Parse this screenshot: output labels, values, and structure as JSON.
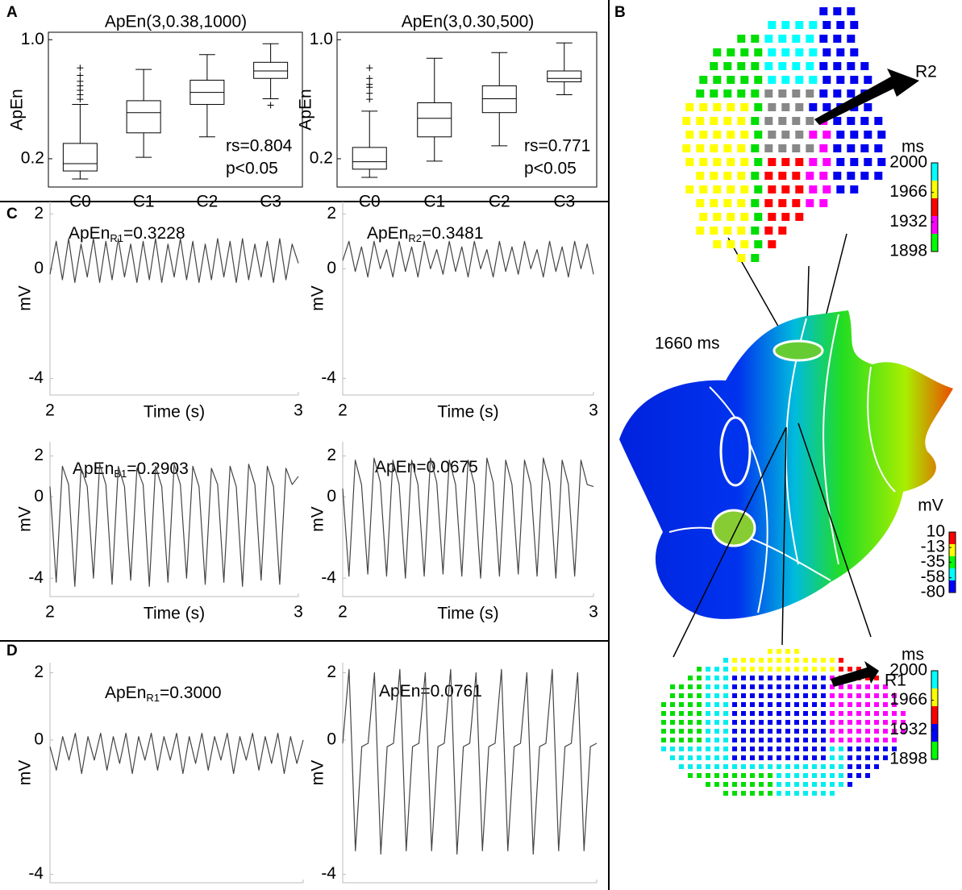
{
  "panel_labels": [
    "A",
    "B",
    "C",
    "D"
  ],
  "chart_data": [
    {
      "type": "box",
      "title": "ApEn(3,0.38,1000)",
      "ylabel": "ApEn",
      "categories": [
        "C0",
        "C1",
        "C2",
        "C3"
      ],
      "boxes": [
        {
          "whislo": 0.064,
          "q1": 0.118,
          "med": 0.167,
          "q3": 0.303,
          "whishi": 0.565,
          "fliers": [
            0.6,
            0.63,
            0.66,
            0.69,
            0.72,
            0.76,
            0.81
          ]
        },
        {
          "whislo": 0.21,
          "q1": 0.374,
          "med": 0.51,
          "q3": 0.59,
          "whishi": 0.8,
          "fliers": []
        },
        {
          "whislo": 0.347,
          "q1": 0.565,
          "med": 0.646,
          "q3": 0.728,
          "whishi": 0.9,
          "fliers": []
        },
        {
          "whislo": 0.603,
          "q1": 0.74,
          "med": 0.79,
          "q3": 0.848,
          "whishi": 0.973,
          "fliers": [
            0.56
          ]
        }
      ],
      "annotations": [
        "rs=0.804",
        "p<0.05"
      ],
      "color": "#000000",
      "ylim": [
        0.01,
        1.05
      ],
      "yticks": [
        0.2,
        {
          "value": 1,
          "label": "1.0"
        }
      ]
    },
    {
      "type": "box",
      "title": "ApEn(3,0.30,500)",
      "ylabel": "ApEn",
      "categories": [
        "C0",
        "C1",
        "C2",
        "C3"
      ],
      "boxes": [
        {
          "whislo": 0.075,
          "q1": 0.13,
          "med": 0.18,
          "q3": 0.276,
          "whishi": 0.52,
          "fliers": [
            0.6,
            0.64,
            0.68,
            0.7,
            0.74,
            0.81
          ]
        },
        {
          "whislo": 0.184,
          "q1": 0.347,
          "med": 0.472,
          "q3": 0.576,
          "whishi": 0.875,
          "fliers": []
        },
        {
          "whislo": 0.287,
          "q1": 0.51,
          "med": 0.603,
          "q3": 0.69,
          "whishi": 0.913,
          "fliers": []
        },
        {
          "whislo": 0.63,
          "q1": 0.717,
          "med": 0.74,
          "q3": 0.79,
          "whishi": 0.978,
          "fliers": []
        }
      ],
      "annotations": [
        "rs=0.771",
        "p<0.05"
      ],
      "color": "#000000",
      "ylim": [
        0.01,
        1.05
      ],
      "yticks": [
        0.2,
        {
          "value": 1,
          "label": "1.0"
        }
      ]
    },
    {
      "type": "line",
      "title": "ApEn",
      "title_subscript": "R1",
      "title_suffix": "=0.3228",
      "xlabel": "Time (s)",
      "ylabel": "mV",
      "color": "#444444",
      "x": [
        2,
        2.025,
        2.05,
        2.075,
        2.1,
        2.125,
        2.15,
        2.175,
        2.2,
        2.225,
        2.25,
        2.275,
        2.3,
        2.325,
        2.35,
        2.375,
        2.4,
        2.425,
        2.45,
        2.475,
        2.5,
        2.525,
        2.55,
        2.575,
        2.6,
        2.625,
        2.65,
        2.675,
        2.7,
        2.725,
        2.75,
        2.775,
        2.8,
        2.825,
        2.85,
        2.875,
        2.9,
        2.925,
        2.95,
        2.975,
        3
      ],
      "values": [
        -0.2,
        1.0,
        -0.4,
        1.1,
        -0.5,
        0.9,
        -0.3,
        1.1,
        -0.5,
        1.0,
        -0.4,
        1.1,
        -0.3,
        0.9,
        -0.5,
        1.0,
        -0.4,
        1.1,
        -0.5,
        0.9,
        -0.3,
        1.1,
        -0.4,
        1.0,
        -0.5,
        0.9,
        -0.4,
        1.1,
        -0.3,
        1.0,
        -0.5,
        1.1,
        -0.4,
        0.9,
        -0.3,
        1.0,
        -0.5,
        1.1,
        -0.4,
        0.9,
        0.2
      ],
      "xlim": [
        2,
        3
      ],
      "xticks": [
        2,
        3
      ],
      "ylim": [
        -4.6,
        2.45
      ],
      "yticks": [
        2,
        0,
        -4
      ]
    },
    {
      "type": "line",
      "title": "ApEn",
      "title_subscript": "R2",
      "title_suffix": "=0.3481",
      "xlabel": "Time (s)",
      "ylabel": "mV",
      "color": "#444444",
      "x": [
        2,
        2.025,
        2.05,
        2.075,
        2.1,
        2.125,
        2.15,
        2.175,
        2.2,
        2.225,
        2.25,
        2.275,
        2.3,
        2.325,
        2.35,
        2.375,
        2.4,
        2.425,
        2.45,
        2.475,
        2.5,
        2.525,
        2.55,
        2.575,
        2.6,
        2.625,
        2.65,
        2.675,
        2.7,
        2.725,
        2.75,
        2.775,
        2.8,
        2.825,
        2.85,
        2.875,
        2.9,
        2.925,
        2.95,
        2.975,
        3
      ],
      "values": [
        0.3,
        1.0,
        -0.1,
        0.8,
        -0.3,
        1.0,
        0.0,
        0.7,
        -0.3,
        1.0,
        -0.1,
        0.8,
        -0.3,
        1.0,
        0.0,
        0.7,
        -0.2,
        1.0,
        -0.1,
        0.8,
        -0.3,
        1.0,
        0.0,
        0.7,
        -0.3,
        1.0,
        -0.1,
        0.8,
        -0.2,
        1.0,
        0.0,
        0.7,
        -0.3,
        1.0,
        -0.1,
        0.8,
        -0.3,
        1.0,
        0.0,
        0.9,
        -0.2
      ],
      "xlim": [
        2,
        3
      ],
      "xticks": [
        2,
        3
      ],
      "ylim": [
        -4.6,
        2.45
      ],
      "yticks": [
        2,
        0,
        -4
      ]
    },
    {
      "type": "line",
      "title": "ApEn",
      "title_subscript": "B1",
      "title_suffix": "=0.2903",
      "xlabel": "Time (s)",
      "ylabel": "mV",
      "color": "#444444",
      "x": [
        2,
        2.025,
        2.05,
        2.075,
        2.1,
        2.125,
        2.15,
        2.175,
        2.2,
        2.225,
        2.25,
        2.275,
        2.3,
        2.325,
        2.35,
        2.375,
        2.4,
        2.425,
        2.45,
        2.475,
        2.5,
        2.525,
        2.55,
        2.575,
        2.6,
        2.625,
        2.65,
        2.675,
        2.7,
        2.725,
        2.75,
        2.775,
        2.8,
        2.825,
        2.85,
        2.875,
        2.9,
        2.925,
        2.95,
        2.975,
        3
      ],
      "values": [
        0.5,
        -4.2,
        1.5,
        0.6,
        -4.4,
        1.4,
        0.5,
        -4.0,
        1.6,
        0.6,
        -4.3,
        1.5,
        0.5,
        -4.1,
        1.4,
        0.6,
        -4.4,
        1.5,
        0.5,
        -4.2,
        1.6,
        0.6,
        -4.0,
        1.5,
        0.5,
        -4.3,
        1.4,
        0.6,
        -4.2,
        1.5,
        0.5,
        -4.4,
        1.6,
        0.6,
        -4.1,
        1.5,
        0.5,
        -4.3,
        1.4,
        0.6,
        1.0
      ],
      "xlim": [
        2,
        3
      ],
      "xticks": [
        2,
        3
      ],
      "ylim": [
        -4.9,
        2.7
      ],
      "yticks": [
        2,
        0,
        -4
      ]
    },
    {
      "type": "line",
      "title": "ApEn=0.0675",
      "xlabel": "Time (s)",
      "ylabel": "mV",
      "color": "#444444",
      "x": [
        2,
        2.025,
        2.05,
        2.075,
        2.1,
        2.125,
        2.15,
        2.175,
        2.2,
        2.225,
        2.25,
        2.275,
        2.3,
        2.325,
        2.35,
        2.375,
        2.4,
        2.425,
        2.45,
        2.475,
        2.5,
        2.525,
        2.55,
        2.575,
        2.6,
        2.625,
        2.65,
        2.675,
        2.7,
        2.725,
        2.75,
        2.775,
        2.8,
        2.825,
        2.85,
        2.875,
        2.9,
        2.925,
        2.95,
        2.975,
        3
      ],
      "values": [
        0.4,
        -3.9,
        1.8,
        0.6,
        -3.8,
        1.9,
        0.7,
        -3.9,
        1.8,
        0.6,
        -4.0,
        1.8,
        0.6,
        -3.9,
        1.9,
        0.7,
        -3.8,
        1.8,
        0.6,
        -3.9,
        1.8,
        0.6,
        -4.0,
        1.9,
        0.7,
        -3.9,
        1.8,
        0.6,
        -3.8,
        1.8,
        0.6,
        -3.9,
        1.9,
        0.7,
        -4.0,
        1.8,
        0.6,
        -3.9,
        1.8,
        0.6,
        0.5
      ],
      "xlim": [
        2,
        3
      ],
      "xticks": [
        2,
        3
      ],
      "ylim": [
        -4.9,
        2.7
      ],
      "yticks": [
        2,
        0,
        -4
      ]
    },
    {
      "type": "line",
      "title": "ApEn",
      "title_subscript": "R1",
      "title_suffix": "=0.3000",
      "xlabel": "Time (s)",
      "ylabel": "mV",
      "color": "#444444",
      "x": [
        2,
        2.025,
        2.05,
        2.075,
        2.1,
        2.125,
        2.15,
        2.175,
        2.2,
        2.225,
        2.25,
        2.275,
        2.3,
        2.325,
        2.35,
        2.375,
        2.4,
        2.425,
        2.45,
        2.475,
        2.5,
        2.525,
        2.55,
        2.575,
        2.6,
        2.625,
        2.65,
        2.675,
        2.7,
        2.725,
        2.75,
        2.775,
        2.8,
        2.825,
        2.85,
        2.875,
        2.9,
        2.925,
        2.95,
        2.975,
        3
      ],
      "values": [
        -0.2,
        -0.9,
        0.1,
        -0.6,
        0.2,
        -1.0,
        0.1,
        -0.6,
        0.2,
        -0.9,
        0.1,
        -0.7,
        0.2,
        -1.0,
        0.1,
        -0.6,
        0.2,
        -0.9,
        0.1,
        -0.6,
        0.2,
        -1.0,
        0.1,
        -0.7,
        0.2,
        -0.9,
        0.1,
        -0.6,
        0.2,
        -1.0,
        0.1,
        -0.6,
        0.2,
        -0.9,
        0.1,
        -0.7,
        0.2,
        -1.0,
        0.1,
        -0.7,
        0.0
      ],
      "xlim": [
        2,
        3
      ],
      "xticks": [
        2,
        3
      ],
      "ylim": [
        -4.25,
        2.3
      ],
      "yticks": [
        2,
        0,
        -4
      ]
    },
    {
      "type": "line",
      "title": "ApEn=0.0761",
      "xlabel": "Time (s)",
      "ylabel": "mV",
      "color": "#444444",
      "x": [
        2,
        2.025,
        2.05,
        2.075,
        2.1,
        2.125,
        2.15,
        2.175,
        2.2,
        2.225,
        2.25,
        2.275,
        2.3,
        2.325,
        2.35,
        2.375,
        2.4,
        2.425,
        2.45,
        2.475,
        2.5,
        2.525,
        2.55,
        2.575,
        2.6,
        2.625,
        2.65,
        2.675,
        2.7,
        2.725,
        2.75,
        2.775,
        2.8,
        2.825,
        2.85,
        2.875,
        2.9,
        2.925,
        2.95,
        2.975,
        3
      ],
      "values": [
        -0.1,
        2.1,
        -3.3,
        -0.2,
        -0.1,
        2.0,
        -3.4,
        -0.2,
        -0.1,
        2.1,
        -3.3,
        -0.2,
        -0.1,
        2.0,
        -3.3,
        -0.2,
        -0.1,
        2.1,
        -3.4,
        -0.2,
        -0.1,
        2.0,
        -3.3,
        -0.2,
        -0.1,
        2.1,
        -3.3,
        -0.2,
        -0.1,
        2.0,
        -3.4,
        -0.2,
        -0.1,
        2.1,
        -3.3,
        -0.2,
        -0.1,
        2.0,
        -3.3,
        -0.2,
        -0.1
      ],
      "xlim": [
        2,
        3
      ],
      "xticks": [
        2,
        3
      ],
      "ylim": [
        -4.25,
        2.3
      ],
      "yticks": [
        2,
        0,
        -4
      ]
    }
  ],
  "panel_b": {
    "time_label": "1660 ms",
    "markers": [
      "R2",
      "R1"
    ],
    "colorbars": [
      {
        "title": "ms",
        "lim": [
          1898,
          2000
        ],
        "ticks": [
          2000,
          1966,
          1932,
          1898
        ],
        "colors": [
          "#00ffff",
          "#ffff00",
          "#ff0000",
          "#ff00ff",
          "#00ff00"
        ]
      },
      {
        "title": "mV",
        "lim": [
          -80,
          10
        ],
        "ticks": [
          10,
          -13,
          -35,
          -58,
          -80
        ],
        "colors": [
          "#ff0000",
          "#ffff00",
          "#00ff00",
          "#00ffff",
          "#0000ff"
        ]
      },
      {
        "title": "ms",
        "lim": [
          1898,
          2000
        ],
        "ticks": [
          2000,
          1966,
          1932,
          1898
        ],
        "colors": [
          "#00ffff",
          "#ffff00",
          "#ff0000",
          "#0000ff",
          "#00ff00"
        ]
      }
    ]
  }
}
